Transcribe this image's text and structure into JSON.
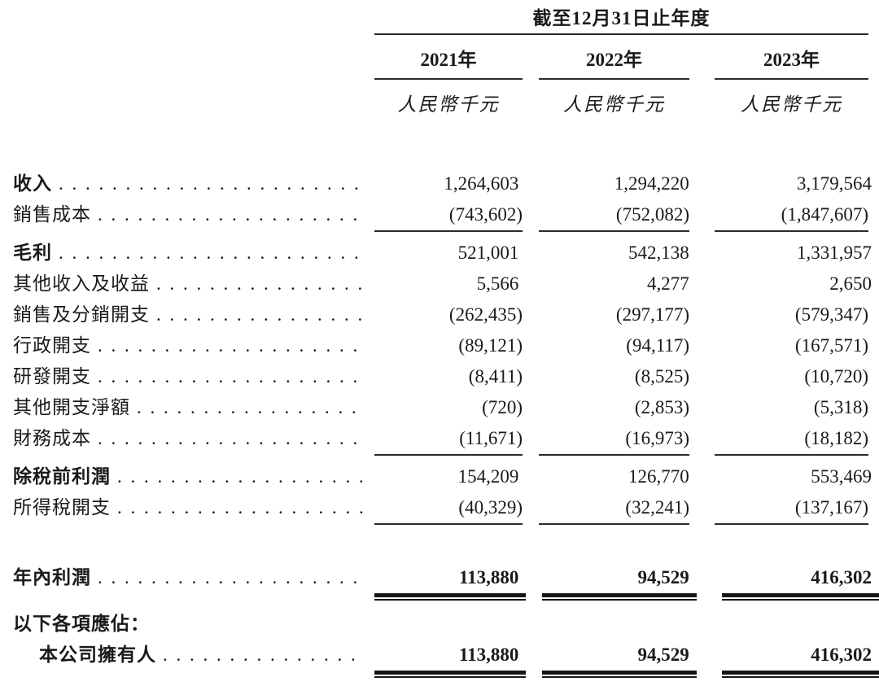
{
  "statement": {
    "period_header": "截至12月31日止年度",
    "columns": [
      {
        "year": "2021年",
        "unit": "人民幣千元"
      },
      {
        "year": "2022年",
        "unit": "人民幣千元"
      },
      {
        "year": "2023年",
        "unit": "人民幣千元"
      }
    ],
    "rows": [
      {
        "label": "收入",
        "values": [
          "1,264,603",
          "1,294,220",
          "3,179,564"
        ]
      },
      {
        "label": "銷售成本",
        "values": [
          "(743,602)",
          "(752,082)",
          "(1,847,607)"
        ]
      },
      {
        "label": "毛利",
        "values": [
          "521,001",
          "542,138",
          "1,331,957"
        ]
      },
      {
        "label": "其他收入及收益",
        "values": [
          "5,566",
          "4,277",
          "2,650"
        ]
      },
      {
        "label": "銷售及分銷開支",
        "values": [
          "(262,435)",
          "(297,177)",
          "(579,347)"
        ]
      },
      {
        "label": "行政開支",
        "values": [
          "(89,121)",
          "(94,117)",
          "(167,571)"
        ]
      },
      {
        "label": "研發開支",
        "values": [
          "(8,411)",
          "(8,525)",
          "(10,720)"
        ]
      },
      {
        "label": "其他開支淨額",
        "values": [
          "(720)",
          "(2,853)",
          "(5,318)"
        ]
      },
      {
        "label": "財務成本",
        "values": [
          "(11,671)",
          "(16,973)",
          "(18,182)"
        ]
      },
      {
        "label": "除稅前利潤",
        "values": [
          "154,209",
          "126,770",
          "553,469"
        ]
      },
      {
        "label": "所得稅開支",
        "values": [
          "(40,329)",
          "(32,241)",
          "(137,167)"
        ]
      },
      {
        "label": "年內利潤",
        "values": [
          "113,880",
          "94,529",
          "416,302"
        ]
      },
      {
        "label": "以下各項應佔："
      },
      {
        "label": "本公司擁有人",
        "values": [
          "113,880",
          "94,529",
          "416,302"
        ]
      }
    ]
  }
}
